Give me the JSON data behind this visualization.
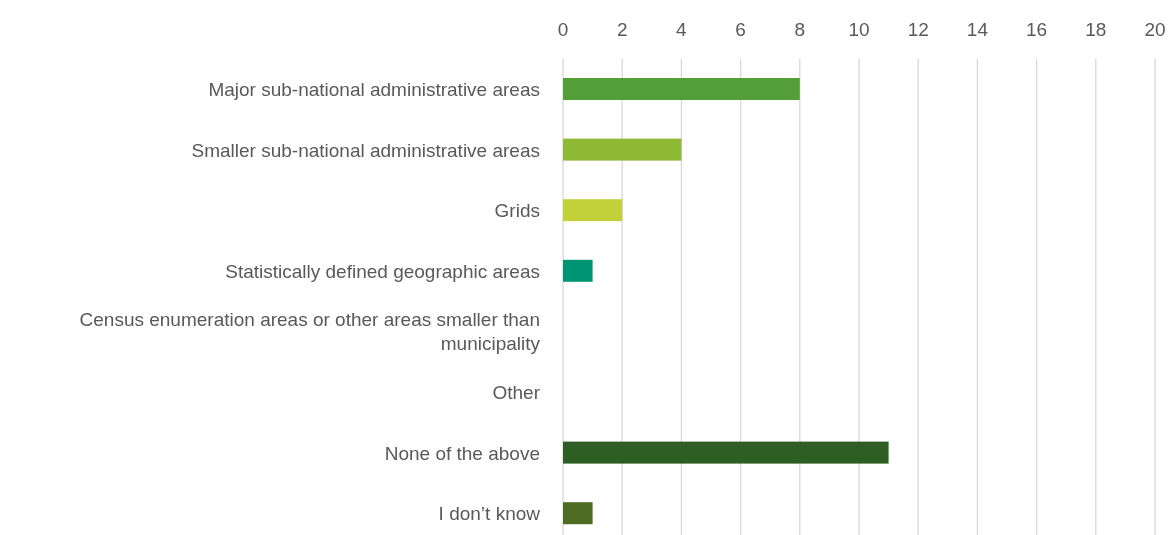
{
  "chart_data": {
    "type": "bar",
    "orientation": "horizontal",
    "categories": [
      "Major sub-national administrative areas",
      "Smaller sub-national administrative areas",
      "Grids",
      "Statistically defined geographic areas",
      "Census enumeration areas or other areas smaller than municipality",
      "Other",
      "None of the above",
      "I don’t know"
    ],
    "values": [
      8,
      4,
      2,
      1,
      0,
      0,
      11,
      1
    ],
    "colors": [
      "#539e38",
      "#8fba35",
      "#c2d13a",
      "#009473",
      "#3b7a2e",
      "#3b7a2e",
      "#2e5e23",
      "#4e6b22"
    ],
    "xlim": [
      0,
      20
    ],
    "xticks": [
      0,
      2,
      4,
      6,
      8,
      10,
      12,
      14,
      16,
      18,
      20
    ],
    "grid": "x"
  }
}
